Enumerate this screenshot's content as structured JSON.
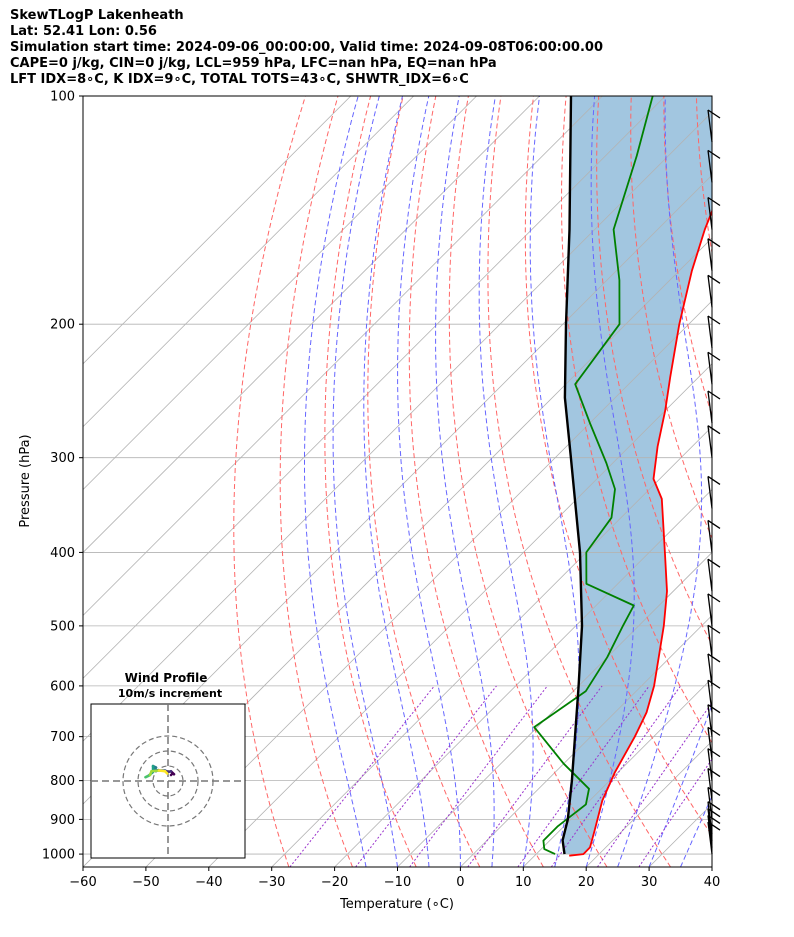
{
  "chart_data": {
    "type": "line",
    "subtype": "skew-t log-p",
    "title_lines": [
      "SkewTLogP Lakenheath",
      "Lat: 52.41   Lon: 0.56",
      "Simulation start time: 2024-09-06_00:00:00, Valid time: 2024-09-08T06:00:00.00",
      "CAPE=0 j/kg, CIN=0 j/kg, LCL=959 hPa, LFC=nan hPa, EQ=nan hPa",
      "LFT IDX=8∘C, K IDX=9∘C, TOTAL TOTS=43∘C, SHWTR_IDX=6∘C"
    ],
    "xlabel": "Temperature (∘C)",
    "ylabel": "Pressure (hPa)",
    "xlim": [
      -60,
      40
    ],
    "ylim": [
      1040,
      100
    ],
    "x_ticks": [
      -60,
      -50,
      -40,
      -30,
      -20,
      -10,
      0,
      10,
      20,
      30,
      40
    ],
    "y_ticks": [
      1000,
      900,
      800,
      700,
      600,
      500,
      400,
      300,
      200,
      100
    ],
    "colors": {
      "temperature": "#ff0000",
      "dewpoint": "#008000",
      "parcel": "#000000",
      "shading": "#a2c6e0",
      "dry_adiabats": "#ff6666",
      "moist_adiabats": "#6666ff",
      "mixing_ratio": "#9933cc",
      "isotherms": "#b3b3b3"
    },
    "series": [
      {
        "name": "Temperature",
        "points": [
          {
            "p": 1005,
            "t": 15.5
          },
          {
            "p": 1000,
            "t": 17.5
          },
          {
            "p": 980,
            "t": 17.5
          },
          {
            "p": 930,
            "t": 15.5
          },
          {
            "p": 850,
            "t": 12.0
          },
          {
            "p": 780,
            "t": 9.5
          },
          {
            "p": 700,
            "t": 7.0
          },
          {
            "p": 650,
            "t": 5.0
          },
          {
            "p": 600,
            "t": 2.0
          },
          {
            "p": 500,
            "t": -6.0
          },
          {
            "p": 450,
            "t": -11.0
          },
          {
            "p": 400,
            "t": -17.5
          },
          {
            "p": 340,
            "t": -26.5
          },
          {
            "p": 320,
            "t": -31.0
          },
          {
            "p": 290,
            "t": -35.5
          },
          {
            "p": 260,
            "t": -40.0
          },
          {
            "p": 235,
            "t": -44.5
          },
          {
            "p": 200,
            "t": -51.5
          },
          {
            "p": 170,
            "t": -58.0
          },
          {
            "p": 150,
            "t": -62.5
          },
          {
            "p": 130,
            "t": -67.0
          },
          {
            "p": 115,
            "t": -71.0
          },
          {
            "p": 100,
            "t": -75.5
          }
        ]
      },
      {
        "name": "Dewpoint",
        "points": [
          {
            "p": 1000,
            "t": 13.0
          },
          {
            "p": 985,
            "t": 10.5
          },
          {
            "p": 960,
            "t": 9.0
          },
          {
            "p": 920,
            "t": 9.0
          },
          {
            "p": 860,
            "t": 10.0
          },
          {
            "p": 820,
            "t": 8.0
          },
          {
            "p": 760,
            "t": 0.0
          },
          {
            "p": 680,
            "t": -10.5
          },
          {
            "p": 610,
            "t": -8.0
          },
          {
            "p": 550,
            "t": -10.0
          },
          {
            "p": 500,
            "t": -12.5
          },
          {
            "p": 470,
            "t": -14.0
          },
          {
            "p": 440,
            "t": -25.0
          },
          {
            "p": 400,
            "t": -30.0
          },
          {
            "p": 360,
            "t": -31.5
          },
          {
            "p": 330,
            "t": -35.5
          },
          {
            "p": 305,
            "t": -41.0
          },
          {
            "p": 270,
            "t": -50.0
          },
          {
            "p": 240,
            "t": -58.5
          },
          {
            "p": 200,
            "t": -61.0
          },
          {
            "p": 175,
            "t": -68.0
          },
          {
            "p": 150,
            "t": -77.0
          },
          {
            "p": 120,
            "t": -85.0
          },
          {
            "p": 100,
            "t": -92.0
          }
        ]
      },
      {
        "name": "Parcel",
        "points": [
          {
            "p": 1000,
            "t": 14.5
          },
          {
            "p": 959,
            "t": 12.0
          },
          {
            "p": 900,
            "t": 9.5
          },
          {
            "p": 800,
            "t": 4.0
          },
          {
            "p": 700,
            "t": -2.5
          },
          {
            "p": 600,
            "t": -10.0
          },
          {
            "p": 500,
            "t": -19.0
          },
          {
            "p": 400,
            "t": -31.0
          },
          {
            "p": 300,
            "t": -47.5
          },
          {
            "p": 250,
            "t": -58.0
          },
          {
            "p": 200,
            "t": -69.5
          },
          {
            "p": 150,
            "t": -84.0
          },
          {
            "p": 100,
            "t": -105.0
          }
        ]
      }
    ],
    "wind_barbs": [
      {
        "p": 1000
      },
      {
        "p": 980
      },
      {
        "p": 960
      },
      {
        "p": 940
      },
      {
        "p": 900
      },
      {
        "p": 850
      },
      {
        "p": 800
      },
      {
        "p": 750
      },
      {
        "p": 700
      },
      {
        "p": 650
      },
      {
        "p": 600
      },
      {
        "p": 550
      },
      {
        "p": 500
      },
      {
        "p": 450
      },
      {
        "p": 400
      },
      {
        "p": 350
      },
      {
        "p": 300
      },
      {
        "p": 270
      },
      {
        "p": 240
      },
      {
        "p": 215
      },
      {
        "p": 190
      },
      {
        "p": 170
      },
      {
        "p": 150
      },
      {
        "p": 130
      },
      {
        "p": 115
      }
    ],
    "hodograph": {
      "title": "Wind Profile",
      "subtitle": "10m/s increment",
      "rings_ms": [
        10,
        20,
        30
      ],
      "points": [
        {
          "u": 2.0,
          "v": 4.0
        },
        {
          "u": 3.0,
          "v": 5.0
        },
        {
          "u": 4.0,
          "v": 4.5
        },
        {
          "u": 2.0,
          "v": 6.5
        },
        {
          "u": 0.0,
          "v": 6.0
        },
        {
          "u": -2.0,
          "v": 7.0
        },
        {
          "u": -6.0,
          "v": 7.0
        },
        {
          "u": -9.0,
          "v": 7.5
        },
        {
          "u": -8.0,
          "v": 9.0
        },
        {
          "u": -10.0,
          "v": 10.0
        },
        {
          "u": -10.0,
          "v": 6.0
        },
        {
          "u": -13.0,
          "v": 3.5
        },
        {
          "u": -15.0,
          "v": 2.5
        },
        {
          "u": -12.0,
          "v": 4.0
        },
        {
          "u": -11.0,
          "v": 6.5
        },
        {
          "u": -6.0,
          "v": 7.0
        },
        {
          "u": -2.0,
          "v": 6.5
        },
        {
          "u": -0.5,
          "v": 5.0
        }
      ]
    }
  }
}
